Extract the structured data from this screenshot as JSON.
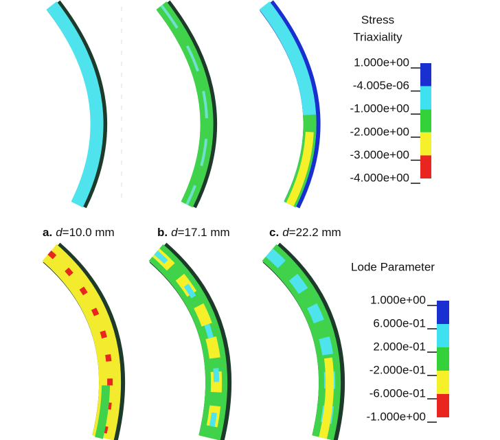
{
  "captions": [
    {
      "letter": "a.",
      "variable": "d",
      "value": "=10.0 mm"
    },
    {
      "letter": "b.",
      "variable": "d",
      "value": "=17.1 mm"
    },
    {
      "letter": "c.",
      "variable": "d",
      "value": "=22.2 mm"
    }
  ],
  "legends": [
    {
      "title": [
        "Stress",
        "Triaxiality"
      ],
      "labels": [
        "1.000e+00",
        "-4.005e-06",
        "-1.000e+00",
        "-2.000e+00",
        "-3.000e+00",
        "-4.000e+00"
      ],
      "colors": [
        "#1a2fd0",
        "#3fe0f0",
        "#34d13a",
        "#f6f02a",
        "#e8251e"
      ]
    },
    {
      "title": [
        "Lode Parameter"
      ],
      "labels": [
        "1.000e+00",
        "6.000e-01",
        "2.000e-01",
        "-2.000e-01",
        "-6.000e-01",
        "-1.000e+00"
      ],
      "colors": [
        "#1a2fd0",
        "#3fe0f0",
        "#34d13a",
        "#f6f02a",
        "#e8251e"
      ]
    }
  ]
}
